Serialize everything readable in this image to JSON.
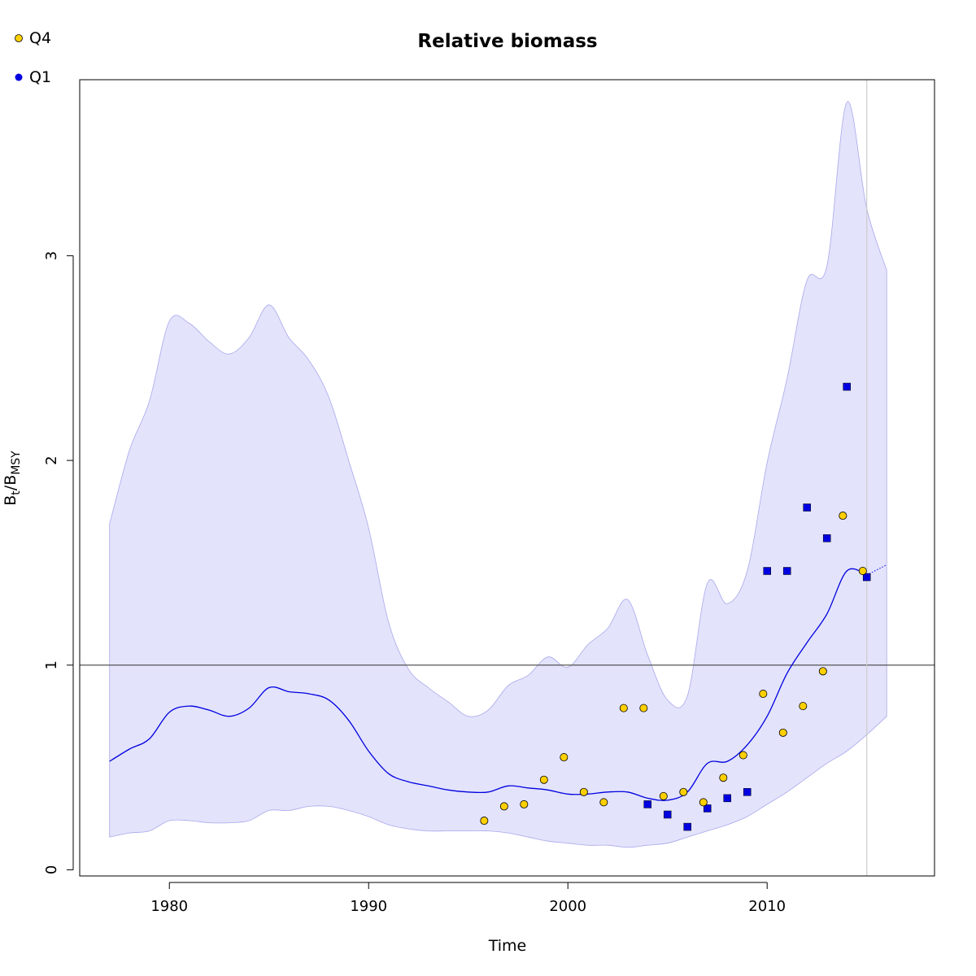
{
  "chart_data": {
    "type": "line",
    "title": "Relative biomass",
    "xlabel": "Time",
    "ylabel": {
      "main": "B",
      "sub1": "t",
      "slash": "/B",
      "sub2": "MSY"
    },
    "xlim": [
      1975.5,
      2018.4
    ],
    "ylim": [
      -0.03,
      3.86
    ],
    "x_ticks": [
      1980,
      1990,
      2000,
      2010
    ],
    "y_ticks": [
      0,
      1,
      2,
      3
    ],
    "reference_line_y": 1,
    "vertical_line_x": 2015,
    "colors": {
      "band_fill": "#e3e3fb",
      "band_edge": "#a8a8ec",
      "median_line": "#0000e0",
      "q4_fill": "#ffd000",
      "q1_fill": "#0000e0",
      "reference_line": "#555555",
      "vertical_line": "#cccccc"
    },
    "legend": [
      {
        "label": "Q4",
        "marker": "circle",
        "color": "#ffd000"
      },
      {
        "label": "Q1",
        "marker": "circle",
        "color": "#0000e0"
      }
    ],
    "legend_position": "top-left",
    "series": [
      {
        "role": "estimate",
        "x": [
          1977,
          1978,
          1979,
          1980,
          1981,
          1982,
          1983,
          1984,
          1985,
          1986,
          1987,
          1988,
          1989,
          1990,
          1991,
          1992,
          1993,
          1994,
          1995,
          1996,
          1997,
          1998,
          1999,
          2000,
          2001,
          2002,
          2003,
          2004,
          2005,
          2006,
          2007,
          2008,
          2009,
          2010,
          2011,
          2012,
          2013,
          2014,
          2015
        ],
        "y": [
          0.53,
          0.59,
          0.64,
          0.77,
          0.8,
          0.78,
          0.75,
          0.79,
          0.89,
          0.87,
          0.86,
          0.83,
          0.73,
          0.58,
          0.47,
          0.43,
          0.41,
          0.39,
          0.38,
          0.38,
          0.41,
          0.4,
          0.39,
          0.37,
          0.37,
          0.38,
          0.38,
          0.35,
          0.34,
          0.38,
          0.52,
          0.53,
          0.61,
          0.75,
          0.96,
          1.11,
          1.25,
          1.46,
          1.44
        ]
      },
      {
        "role": "projection",
        "x": [
          2015,
          2016
        ],
        "y": [
          1.44,
          1.49
        ]
      }
    ],
    "band": {
      "x": [
        1977,
        1978,
        1979,
        1980,
        1981,
        1982,
        1983,
        1984,
        1985,
        1986,
        1987,
        1988,
        1989,
        1990,
        1991,
        1992,
        1993,
        1994,
        1995,
        1996,
        1997,
        1998,
        1999,
        2000,
        2001,
        2002,
        2003,
        2004,
        2005,
        2006,
        2007,
        2008,
        2009,
        2010,
        2011,
        2012,
        2013,
        2014,
        2015,
        2016
      ],
      "upper": [
        1.69,
        2.05,
        2.29,
        2.68,
        2.67,
        2.58,
        2.52,
        2.6,
        2.76,
        2.6,
        2.49,
        2.31,
        2.0,
        1.67,
        1.21,
        0.98,
        0.89,
        0.82,
        0.75,
        0.78,
        0.9,
        0.95,
        1.04,
        0.99,
        1.1,
        1.18,
        1.32,
        1.05,
        0.83,
        0.85,
        1.4,
        1.3,
        1.46,
        1.99,
        2.4,
        2.88,
        2.95,
        3.75,
        3.23,
        2.93
      ],
      "lower": [
        0.16,
        0.18,
        0.19,
        0.24,
        0.24,
        0.23,
        0.23,
        0.24,
        0.29,
        0.29,
        0.31,
        0.31,
        0.29,
        0.26,
        0.22,
        0.2,
        0.19,
        0.19,
        0.19,
        0.19,
        0.18,
        0.16,
        0.14,
        0.13,
        0.12,
        0.12,
        0.11,
        0.12,
        0.13,
        0.16,
        0.19,
        0.22,
        0.26,
        0.32,
        0.38,
        0.45,
        0.52,
        0.58,
        0.66,
        0.75
      ]
    },
    "points_q4": {
      "x": [
        1995.8,
        1996.8,
        1997.8,
        1998.8,
        1999.8,
        2000.8,
        2001.8,
        2002.8,
        2003.8,
        2004.8,
        2005.8,
        2006.8,
        2007.8,
        2008.8,
        2009.8,
        2010.8,
        2011.8,
        2012.8,
        2013.8,
        2014.8
      ],
      "y": [
        0.24,
        0.31,
        0.32,
        0.44,
        0.55,
        0.38,
        0.33,
        0.79,
        0.79,
        0.36,
        0.38,
        0.33,
        0.45,
        0.56,
        0.86,
        0.67,
        0.8,
        0.97,
        1.73,
        1.46
      ]
    },
    "points_q1": {
      "x": [
        2004,
        2005,
        2006,
        2007,
        2008,
        2009,
        2010,
        2011,
        2012,
        2013,
        2014,
        2015
      ],
      "y": [
        0.32,
        0.27,
        0.21,
        0.3,
        0.35,
        0.38,
        1.46,
        1.46,
        1.77,
        1.62,
        2.36,
        1.43
      ]
    }
  }
}
